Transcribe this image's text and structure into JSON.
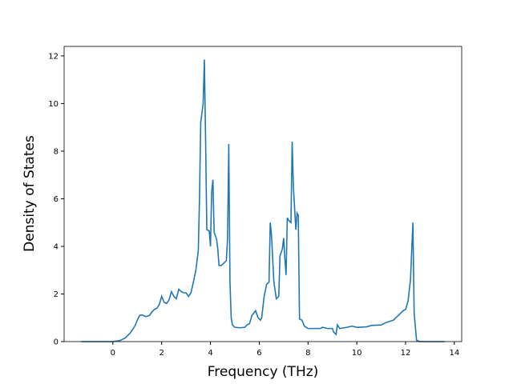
{
  "chart_data": {
    "type": "line",
    "xlabel": "Frequency (THz)",
    "ylabel": "Density of States",
    "x": [
      -1.3,
      -0.5,
      0,
      0.3,
      0.5,
      0.7,
      0.9,
      1.0,
      1.1,
      1.2,
      1.35,
      1.5,
      1.6,
      1.7,
      1.8,
      1.9,
      2.0,
      2.1,
      2.2,
      2.3,
      2.4,
      2.5,
      2.6,
      2.7,
      2.8,
      2.9,
      3.0,
      3.1,
      3.2,
      3.3,
      3.4,
      3.5,
      3.55,
      3.6,
      3.7,
      3.75,
      3.8,
      3.85,
      3.95,
      4.0,
      4.05,
      4.1,
      4.15,
      4.25,
      4.3,
      4.35,
      4.45,
      4.55,
      4.65,
      4.7,
      4.75,
      4.8,
      4.85,
      4.9,
      5.0,
      5.2,
      5.4,
      5.5,
      5.6,
      5.7,
      5.85,
      5.95,
      6.05,
      6.1,
      6.2,
      6.3,
      6.4,
      6.45,
      6.5,
      6.6,
      6.7,
      6.8,
      6.85,
      6.95,
      7.0,
      7.05,
      7.1,
      7.15,
      7.2,
      7.3,
      7.35,
      7.4,
      7.5,
      7.55,
      7.6,
      7.65,
      7.75,
      7.85,
      8.0,
      8.3,
      8.5,
      8.6,
      8.8,
      9.0,
      9.05,
      9.15,
      9.2,
      9.3,
      9.6,
      9.8,
      10.0,
      10.4,
      10.6,
      11.0,
      11.2,
      11.5,
      11.7,
      11.9,
      12.0,
      12.1,
      12.2,
      12.3,
      12.35,
      12.45,
      12.6,
      13.0,
      13.6
    ],
    "series": [
      {
        "color": "#1f77b4",
        "values": [
          0,
          0,
          0,
          0.05,
          0.15,
          0.35,
          0.65,
          0.9,
          1.1,
          1.12,
          1.05,
          1.1,
          1.25,
          1.35,
          1.4,
          1.55,
          1.9,
          1.65,
          1.6,
          1.75,
          2.1,
          1.9,
          1.8,
          2.2,
          2.1,
          2.05,
          2.05,
          1.9,
          2.05,
          2.5,
          3.0,
          3.8,
          6.0,
          9.2,
          10.0,
          11.85,
          8.5,
          4.7,
          4.65,
          4.0,
          6.3,
          6.8,
          4.6,
          4.3,
          3.9,
          3.2,
          3.2,
          3.3,
          3.4,
          4.3,
          8.3,
          2.5,
          1.0,
          0.7,
          0.6,
          0.58,
          0.6,
          0.7,
          0.75,
          1.1,
          1.3,
          1.0,
          0.9,
          1.0,
          1.9,
          2.4,
          2.5,
          5.0,
          4.5,
          2.5,
          1.8,
          1.9,
          3.6,
          3.9,
          4.35,
          3.5,
          2.8,
          5.2,
          5.1,
          5.0,
          8.4,
          6.5,
          4.7,
          5.4,
          5.3,
          0.95,
          0.9,
          0.65,
          0.55,
          0.55,
          0.55,
          0.6,
          0.55,
          0.55,
          0.4,
          0.3,
          0.7,
          0.55,
          0.6,
          0.65,
          0.6,
          0.62,
          0.68,
          0.7,
          0.8,
          0.9,
          1.1,
          1.3,
          1.35,
          1.7,
          2.6,
          5.0,
          1.2,
          0.05,
          0,
          0,
          0
        ]
      }
    ],
    "xlim": [
      -2.0,
      14.3
    ],
    "ylim": [
      0,
      12.4
    ],
    "xticks": [
      0,
      2,
      4,
      6,
      8,
      10,
      12,
      14
    ],
    "yticks": [
      0,
      2,
      4,
      6,
      8,
      10,
      12
    ]
  }
}
